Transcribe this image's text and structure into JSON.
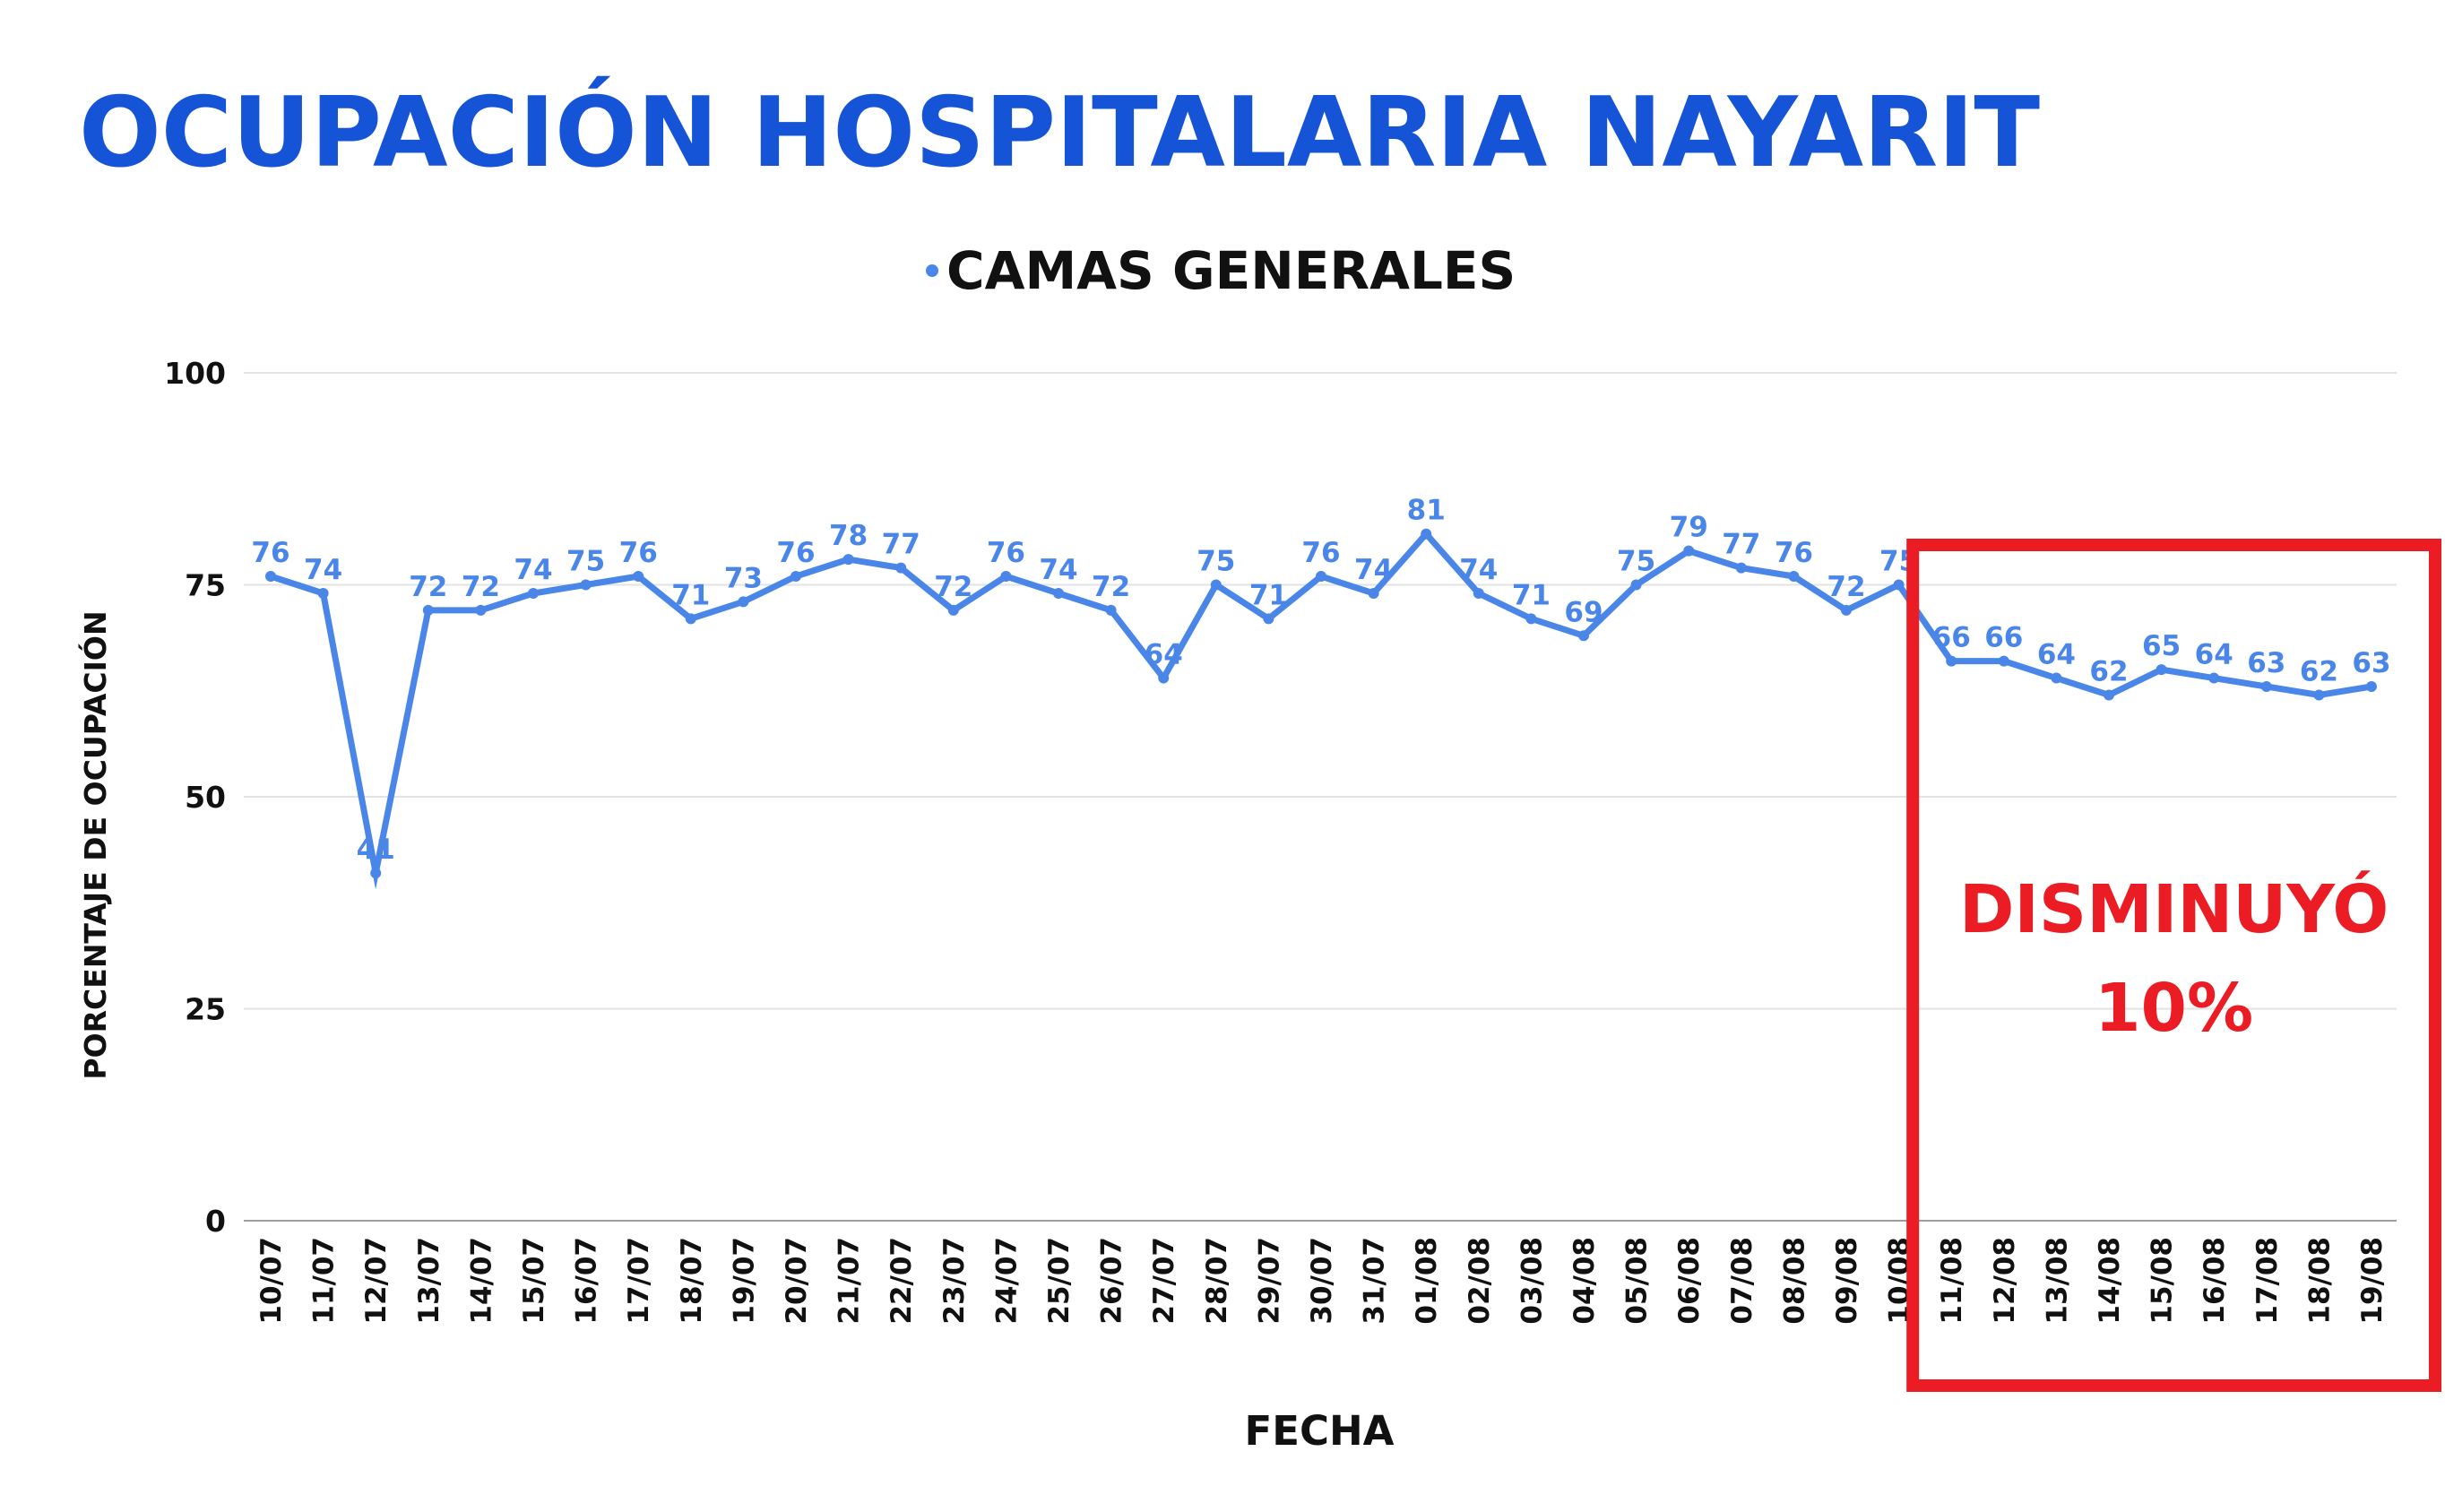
{
  "title": "OCUPACIÓN HOSPITALARIA NAYARIT",
  "colors": {
    "title": "#1554d6",
    "series": "#4a86e8",
    "annotation": "#ec1c24",
    "grid": "#e3e3e3",
    "axis": "#9e9e9e",
    "text": "#111111"
  },
  "annotation": {
    "line1": "DISMINUYÓ",
    "line2": "10%",
    "box_from_category": "11/08",
    "box_to_category": "19/08"
  },
  "chart_data": {
    "type": "line",
    "title": "OCUPACIÓN HOSPITALARIA NAYARIT",
    "xlabel": "FECHA",
    "ylabel": "PORCENTAJE DE OCUPACIÓN",
    "ylim": [
      0,
      100
    ],
    "yticks": [
      0,
      25,
      50,
      75,
      100
    ],
    "grid": true,
    "legend_position": "top-center",
    "data_labels": true,
    "categories": [
      "10/07",
      "11/07",
      "12/07",
      "13/07",
      "14/07",
      "15/07",
      "16/07",
      "17/07",
      "18/07",
      "19/07",
      "20/07",
      "21/07",
      "22/07",
      "23/07",
      "24/07",
      "25/07",
      "26/07",
      "27/07",
      "28/07",
      "29/07",
      "30/07",
      "31/07",
      "01/08",
      "02/08",
      "03/08",
      "04/08",
      "05/08",
      "06/08",
      "07/08",
      "08/08",
      "09/08",
      "10/08",
      "11/08",
      "12/08",
      "13/08",
      "14/08",
      "15/08",
      "16/08",
      "17/08",
      "18/08",
      "19/08"
    ],
    "series": [
      {
        "name": "CAMAS GENERALES",
        "color": "#4a86e8",
        "values": [
          76,
          74,
          41,
          72,
          72,
          74,
          75,
          76,
          71,
          73,
          76,
          78,
          77,
          72,
          76,
          74,
          72,
          64,
          75,
          71,
          76,
          74,
          81,
          74,
          71,
          69,
          75,
          79,
          77,
          76,
          72,
          75,
          66,
          66,
          64,
          62,
          65,
          64,
          63,
          62,
          63
        ]
      }
    ]
  }
}
